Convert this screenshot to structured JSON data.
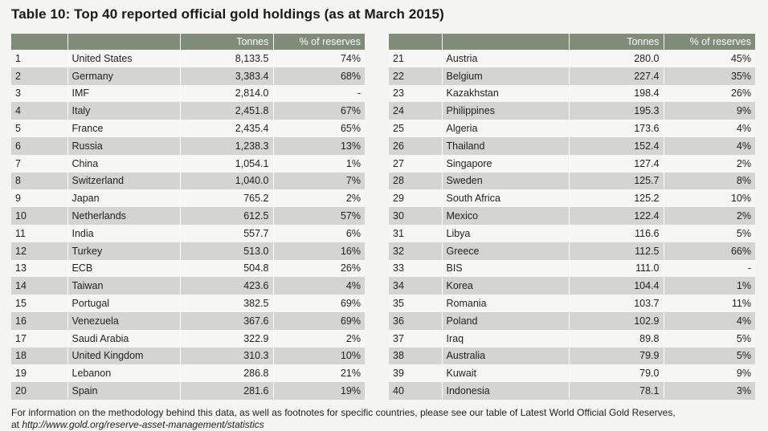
{
  "title": "Table 10: Top 40 reported official gold holdings (as at March 2015)",
  "columns": {
    "rank": "",
    "country": "",
    "tonnes": "Tonnes",
    "pct": "% of reserves"
  },
  "left_rows": [
    {
      "rank": "1",
      "country": "United States",
      "tonnes": "8,133.5",
      "pct": "74%"
    },
    {
      "rank": "2",
      "country": "Germany",
      "tonnes": "3,383.4",
      "pct": "68%"
    },
    {
      "rank": "3",
      "country": "IMF",
      "tonnes": "2,814.0",
      "pct": "-"
    },
    {
      "rank": "4",
      "country": "Italy",
      "tonnes": "2,451.8",
      "pct": "67%"
    },
    {
      "rank": "5",
      "country": "France",
      "tonnes": "2,435.4",
      "pct": "65%"
    },
    {
      "rank": "6",
      "country": "Russia",
      "tonnes": "1,238.3",
      "pct": "13%"
    },
    {
      "rank": "7",
      "country": "China",
      "tonnes": "1,054.1",
      "pct": "1%"
    },
    {
      "rank": "8",
      "country": "Switzerland",
      "tonnes": "1,040.0",
      "pct": "7%"
    },
    {
      "rank": "9",
      "country": "Japan",
      "tonnes": "765.2",
      "pct": "2%"
    },
    {
      "rank": "10",
      "country": "Netherlands",
      "tonnes": "612.5",
      "pct": "57%"
    },
    {
      "rank": "11",
      "country": "India",
      "tonnes": "557.7",
      "pct": "6%"
    },
    {
      "rank": "12",
      "country": "Turkey",
      "tonnes": "513.0",
      "pct": "16%"
    },
    {
      "rank": "13",
      "country": "ECB",
      "tonnes": "504.8",
      "pct": "26%"
    },
    {
      "rank": "14",
      "country": "Taiwan",
      "tonnes": "423.6",
      "pct": "4%"
    },
    {
      "rank": "15",
      "country": "Portugal",
      "tonnes": "382.5",
      "pct": "69%"
    },
    {
      "rank": "16",
      "country": "Venezuela",
      "tonnes": "367.6",
      "pct": "69%"
    },
    {
      "rank": "17",
      "country": "Saudi Arabia",
      "tonnes": "322.9",
      "pct": "2%"
    },
    {
      "rank": "18",
      "country": "United Kingdom",
      "tonnes": "310.3",
      "pct": "10%"
    },
    {
      "rank": "19",
      "country": "Lebanon",
      "tonnes": "286.8",
      "pct": "21%"
    },
    {
      "rank": "20",
      "country": "Spain",
      "tonnes": "281.6",
      "pct": "19%"
    }
  ],
  "right_rows": [
    {
      "rank": "21",
      "country": "Austria",
      "tonnes": "280.0",
      "pct": "45%"
    },
    {
      "rank": "22",
      "country": "Belgium",
      "tonnes": "227.4",
      "pct": "35%"
    },
    {
      "rank": "23",
      "country": "Kazakhstan",
      "tonnes": "198.4",
      "pct": "26%"
    },
    {
      "rank": "24",
      "country": "Philippines",
      "tonnes": "195.3",
      "pct": "9%"
    },
    {
      "rank": "25",
      "country": "Algeria",
      "tonnes": "173.6",
      "pct": "4%"
    },
    {
      "rank": "26",
      "country": "Thailand",
      "tonnes": "152.4",
      "pct": "4%"
    },
    {
      "rank": "27",
      "country": "Singapore",
      "tonnes": "127.4",
      "pct": "2%"
    },
    {
      "rank": "28",
      "country": "Sweden",
      "tonnes": "125.7",
      "pct": "8%"
    },
    {
      "rank": "29",
      "country": "South Africa",
      "tonnes": "125.2",
      "pct": "10%"
    },
    {
      "rank": "30",
      "country": "Mexico",
      "tonnes": "122.4",
      "pct": "2%"
    },
    {
      "rank": "31",
      "country": "Libya",
      "tonnes": "116.6",
      "pct": "5%"
    },
    {
      "rank": "32",
      "country": "Greece",
      "tonnes": "112.5",
      "pct": "66%"
    },
    {
      "rank": "33",
      "country": "BIS",
      "tonnes": "111.0",
      "pct": "-"
    },
    {
      "rank": "34",
      "country": "Korea",
      "tonnes": "104.4",
      "pct": "1%"
    },
    {
      "rank": "35",
      "country": "Romania",
      "tonnes": "103.7",
      "pct": "11%"
    },
    {
      "rank": "36",
      "country": "Poland",
      "tonnes": "102.9",
      "pct": "4%"
    },
    {
      "rank": "37",
      "country": "Iraq",
      "tonnes": "89.8",
      "pct": "5%"
    },
    {
      "rank": "38",
      "country": "Australia",
      "tonnes": "79.9",
      "pct": "5%"
    },
    {
      "rank": "39",
      "country": "Kuwait",
      "tonnes": "79.0",
      "pct": "9%"
    },
    {
      "rank": "40",
      "country": "Indonesia",
      "tonnes": "78.1",
      "pct": "3%"
    }
  ],
  "footnote": {
    "text": "For information on the methodology behind this data, as well as footnotes for specific countries, please see our table of Latest World Official Gold Reserves,",
    "prefix": "at ",
    "url": "http://www.gold.org/reserve-asset-management/statistics"
  }
}
